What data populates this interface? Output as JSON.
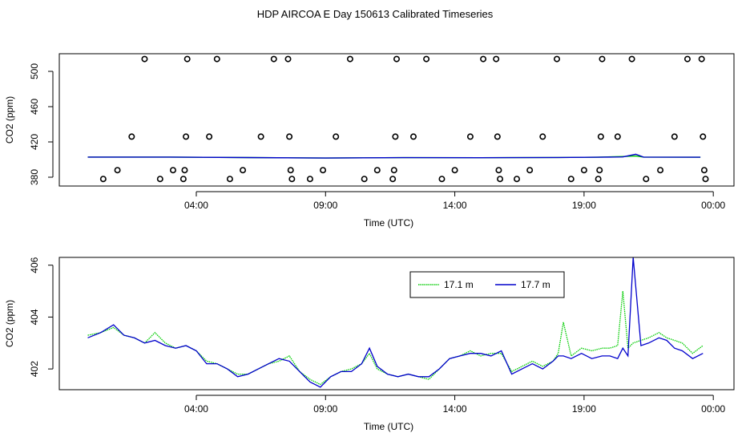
{
  "figure": {
    "title": "HDP AIRCOA E  Day 150613  Calibrated Timeseries",
    "colors": {
      "series_green": "#00cc00",
      "series_blue": "#0000cc",
      "frame": "#000000"
    }
  },
  "chart_data": [
    {
      "type": "scatter",
      "name_hint": "top-panel",
      "xlabel": "Time (UTC)",
      "ylabel": "CO2 (ppm)",
      "x_unit": "hours UTC",
      "xlim": [
        -1.3,
        24.8
      ],
      "ylim": [
        370,
        520
      ],
      "x_ticks": [
        {
          "value": 4,
          "label": "04:00"
        },
        {
          "value": 9,
          "label": "09:00"
        },
        {
          "value": 14,
          "label": "14:00"
        },
        {
          "value": 19,
          "label": "19:00"
        },
        {
          "value": 24,
          "label": "00:00"
        }
      ],
      "y_ticks": [
        {
          "value": 380,
          "label": "380"
        },
        {
          "value": 420,
          "label": "420"
        },
        {
          "value": 460,
          "label": "460"
        },
        {
          "value": 500,
          "label": "500"
        }
      ],
      "grid": false,
      "legend": "none",
      "points": [
        {
          "x": 0.4,
          "y": 378
        },
        {
          "x": 0.95,
          "y": 388
        },
        {
          "x": 1.5,
          "y": 426
        },
        {
          "x": 2.0,
          "y": 514
        },
        {
          "x": 2.6,
          "y": 378
        },
        {
          "x": 3.1,
          "y": 388
        },
        {
          "x": 3.5,
          "y": 378
        },
        {
          "x": 3.55,
          "y": 388
        },
        {
          "x": 3.6,
          "y": 426
        },
        {
          "x": 3.65,
          "y": 514
        },
        {
          "x": 4.5,
          "y": 426
        },
        {
          "x": 4.8,
          "y": 514
        },
        {
          "x": 5.3,
          "y": 378
        },
        {
          "x": 5.8,
          "y": 388
        },
        {
          "x": 6.5,
          "y": 426
        },
        {
          "x": 7.0,
          "y": 514
        },
        {
          "x": 7.55,
          "y": 514
        },
        {
          "x": 7.6,
          "y": 426
        },
        {
          "x": 7.65,
          "y": 388
        },
        {
          "x": 7.7,
          "y": 378
        },
        {
          "x": 8.4,
          "y": 378
        },
        {
          "x": 8.9,
          "y": 388
        },
        {
          "x": 9.4,
          "y": 426
        },
        {
          "x": 9.95,
          "y": 514
        },
        {
          "x": 10.5,
          "y": 378
        },
        {
          "x": 11.0,
          "y": 388
        },
        {
          "x": 11.6,
          "y": 378
        },
        {
          "x": 11.65,
          "y": 388
        },
        {
          "x": 11.7,
          "y": 426
        },
        {
          "x": 11.75,
          "y": 514
        },
        {
          "x": 12.4,
          "y": 426
        },
        {
          "x": 12.9,
          "y": 514
        },
        {
          "x": 13.5,
          "y": 378
        },
        {
          "x": 14.0,
          "y": 388
        },
        {
          "x": 14.6,
          "y": 426
        },
        {
          "x": 15.1,
          "y": 514
        },
        {
          "x": 15.6,
          "y": 514
        },
        {
          "x": 15.65,
          "y": 426
        },
        {
          "x": 15.7,
          "y": 388
        },
        {
          "x": 15.75,
          "y": 378
        },
        {
          "x": 16.4,
          "y": 378
        },
        {
          "x": 16.9,
          "y": 388
        },
        {
          "x": 17.4,
          "y": 426
        },
        {
          "x": 17.95,
          "y": 514
        },
        {
          "x": 18.5,
          "y": 378
        },
        {
          "x": 19.0,
          "y": 388
        },
        {
          "x": 19.55,
          "y": 378
        },
        {
          "x": 19.6,
          "y": 388
        },
        {
          "x": 19.65,
          "y": 426
        },
        {
          "x": 19.7,
          "y": 514
        },
        {
          "x": 20.3,
          "y": 426
        },
        {
          "x": 20.85,
          "y": 514
        },
        {
          "x": 21.4,
          "y": 378
        },
        {
          "x": 21.95,
          "y": 388
        },
        {
          "x": 22.5,
          "y": 426
        },
        {
          "x": 23.0,
          "y": 514
        },
        {
          "x": 23.55,
          "y": 514
        },
        {
          "x": 23.6,
          "y": 426
        },
        {
          "x": 23.65,
          "y": 388
        },
        {
          "x": 23.7,
          "y": 378
        }
      ],
      "series": [
        {
          "color": "#00cc00",
          "x": [
            -0.2,
            3,
            6,
            9,
            12,
            15,
            18,
            19.5,
            20.5,
            21,
            21.3,
            23.5
          ],
          "y": [
            402.8,
            402.8,
            402.3,
            401.7,
            402.2,
            402.1,
            402.4,
            402.6,
            403.5,
            404.0,
            402.8,
            402.6
          ]
        },
        {
          "color": "#0000cc",
          "x": [
            -0.2,
            3,
            6,
            9,
            12,
            15,
            18,
            19.5,
            20.5,
            21,
            21.3,
            23.5
          ],
          "y": [
            402.8,
            402.8,
            402.3,
            401.7,
            402.2,
            402.1,
            402.4,
            402.6,
            403.0,
            406.0,
            402.8,
            402.6
          ]
        }
      ]
    },
    {
      "type": "line",
      "name_hint": "bottom-panel",
      "xlabel": "Time (UTC)",
      "ylabel": "CO2 (ppm)",
      "x_unit": "hours UTC",
      "xlim": [
        -1.3,
        24.8
      ],
      "ylim": [
        401.2,
        406.3
      ],
      "x_ticks": [
        {
          "value": 4,
          "label": "04:00"
        },
        {
          "value": 9,
          "label": "09:00"
        },
        {
          "value": 14,
          "label": "14:00"
        },
        {
          "value": 19,
          "label": "19:00"
        },
        {
          "value": 24,
          "label": "00:00"
        }
      ],
      "y_ticks": [
        {
          "value": 402,
          "label": "402"
        },
        {
          "value": 404,
          "label": "404"
        },
        {
          "value": 406,
          "label": "406"
        }
      ],
      "grid": false,
      "legend": "top-right",
      "series": [
        {
          "name": "17.1 m",
          "color": "#00cc00",
          "line_style": "dotted",
          "x": [
            -0.2,
            0.3,
            0.8,
            1.2,
            1.6,
            2.0,
            2.4,
            2.8,
            3.2,
            3.6,
            4.0,
            4.4,
            4.8,
            5.2,
            5.6,
            6.0,
            6.4,
            6.8,
            7.2,
            7.6,
            8.0,
            8.4,
            8.8,
            9.2,
            9.6,
            10.0,
            10.4,
            10.7,
            11.0,
            11.4,
            11.8,
            12.2,
            12.6,
            13.0,
            13.4,
            13.8,
            14.2,
            14.6,
            15.0,
            15.4,
            15.8,
            16.2,
            16.6,
            17.0,
            17.4,
            17.8,
            18.0,
            18.2,
            18.5,
            18.9,
            19.3,
            19.7,
            20.0,
            20.3,
            20.5,
            20.7,
            20.9,
            21.2,
            21.5,
            21.9,
            22.2,
            22.5,
            22.8,
            23.2,
            23.6
          ],
          "y": [
            403.3,
            403.4,
            403.6,
            403.3,
            403.2,
            403.0,
            403.4,
            403.0,
            402.8,
            402.9,
            402.7,
            402.3,
            402.2,
            402.0,
            401.8,
            401.8,
            402.0,
            402.2,
            402.3,
            402.5,
            401.9,
            401.6,
            401.4,
            401.7,
            401.9,
            402.0,
            402.2,
            402.6,
            402.0,
            401.8,
            401.7,
            401.8,
            401.7,
            401.6,
            402.0,
            402.4,
            402.5,
            402.7,
            402.5,
            402.6,
            402.6,
            401.9,
            402.1,
            402.3,
            402.1,
            402.3,
            402.6,
            403.8,
            402.5,
            402.8,
            402.7,
            402.8,
            402.8,
            402.9,
            405.0,
            402.8,
            403.0,
            403.1,
            403.2,
            403.4,
            403.2,
            403.1,
            403.0,
            402.6,
            402.9
          ]
        },
        {
          "name": "17.7 m",
          "color": "#0000cc",
          "line_style": "solid",
          "x": [
            -0.2,
            0.3,
            0.8,
            1.2,
            1.6,
            2.0,
            2.4,
            2.8,
            3.2,
            3.6,
            4.0,
            4.4,
            4.8,
            5.2,
            5.6,
            6.0,
            6.4,
            6.8,
            7.2,
            7.6,
            8.0,
            8.4,
            8.8,
            9.2,
            9.6,
            10.0,
            10.4,
            10.7,
            11.0,
            11.4,
            11.8,
            12.2,
            12.6,
            13.0,
            13.4,
            13.8,
            14.2,
            14.6,
            15.0,
            15.4,
            15.8,
            16.2,
            16.6,
            17.0,
            17.4,
            17.8,
            18.0,
            18.2,
            18.5,
            18.9,
            19.3,
            19.7,
            20.0,
            20.3,
            20.5,
            20.7,
            20.9,
            21.2,
            21.5,
            21.9,
            22.2,
            22.5,
            22.8,
            23.2,
            23.6
          ],
          "y": [
            403.2,
            403.4,
            403.7,
            403.3,
            403.2,
            403.0,
            403.1,
            402.9,
            402.8,
            402.9,
            402.7,
            402.2,
            402.2,
            402.0,
            401.7,
            401.8,
            402.0,
            402.2,
            402.4,
            402.3,
            401.9,
            401.5,
            401.3,
            401.7,
            401.9,
            401.9,
            402.2,
            402.8,
            402.1,
            401.8,
            401.7,
            401.8,
            401.7,
            401.7,
            402.0,
            402.4,
            402.5,
            402.6,
            402.6,
            402.5,
            402.7,
            401.8,
            402.0,
            402.2,
            402.0,
            402.3,
            402.5,
            402.5,
            402.4,
            402.6,
            402.4,
            402.5,
            402.5,
            402.4,
            402.8,
            402.5,
            406.3,
            402.9,
            403.0,
            403.2,
            403.1,
            402.8,
            402.7,
            402.4,
            402.6
          ]
        }
      ]
    }
  ]
}
